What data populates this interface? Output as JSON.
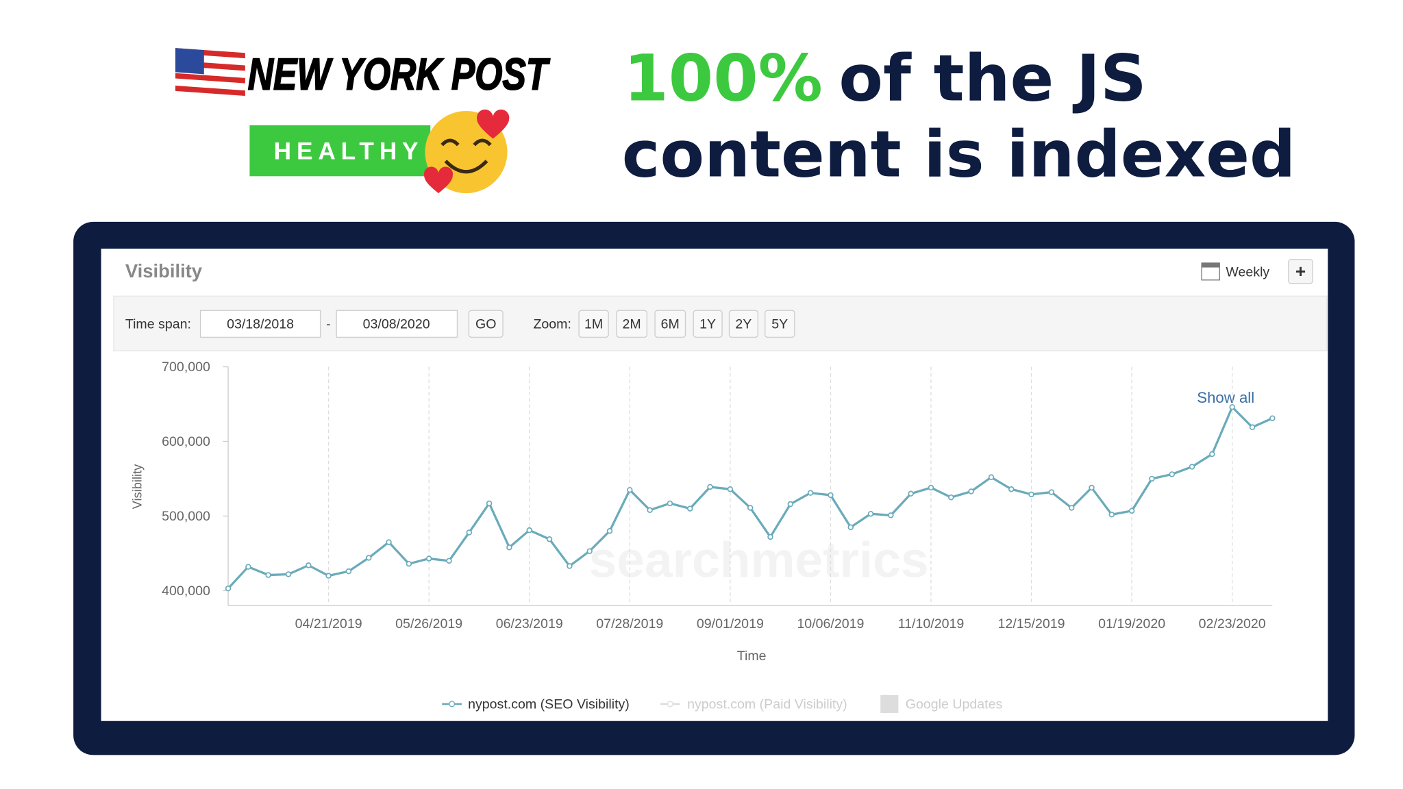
{
  "logo": {
    "text": "NEW YORK POST",
    "badge": "HEALTHY"
  },
  "headline": {
    "highlight": "100%",
    "line1": "of the JS",
    "line2": "content is indexed"
  },
  "widget": {
    "title": "Visibility",
    "interval": "Weekly",
    "add": "+",
    "time_span_label": "Time span:",
    "start": "03/18/2018",
    "separator": "-",
    "end": "03/08/2020",
    "go": "GO",
    "zoom_label": "Zoom:",
    "zoom": [
      "1M",
      "2M",
      "6M",
      "1Y",
      "2Y",
      "5Y"
    ],
    "show_all": "Show all",
    "watermark": "searchmetrics",
    "inactive_legend": [
      "nypost.com (Paid Visibility)",
      "Google Updates"
    ]
  },
  "chart_data": {
    "type": "line",
    "x_label": "Time",
    "y_label": "Visibility",
    "categories": [
      null,
      null,
      null,
      null,
      null,
      "04/21/2019",
      null,
      null,
      null,
      null,
      "05/26/2019",
      null,
      null,
      null,
      null,
      "06/23/2019",
      null,
      null,
      null,
      null,
      "07/28/2019",
      null,
      null,
      null,
      null,
      "09/01/2019",
      null,
      null,
      null,
      null,
      "10/06/2019",
      null,
      null,
      null,
      null,
      "11/10/2019",
      null,
      null,
      null,
      null,
      "12/15/2019",
      null,
      null,
      null,
      null,
      "01/19/2020",
      null,
      null,
      null,
      null,
      "02/23/2020",
      null,
      null
    ],
    "series": [
      {
        "name": "nypost.com (SEO Visibility)",
        "color": "#6aabba",
        "values": [
          403000,
          432000,
          421000,
          422000,
          434000,
          420000,
          426000,
          444000,
          465000,
          436000,
          443000,
          440000,
          478000,
          517000,
          458000,
          481000,
          469000,
          433000,
          453000,
          480000,
          535000,
          508000,
          517000,
          510000,
          539000,
          536000,
          511000,
          472000,
          516000,
          531000,
          528000,
          485000,
          503000,
          501000,
          530000,
          538000,
          525000,
          533000,
          552000,
          536000,
          529000,
          532000,
          511000,
          538000,
          502000,
          507000,
          550000,
          556000,
          566000,
          583000,
          646000,
          619000,
          631000
        ]
      }
    ],
    "ylim": [
      380000,
      700000
    ],
    "yticks": [
      {
        "value": 400000,
        "label": "400,000"
      },
      {
        "value": 500000,
        "label": "500,000"
      },
      {
        "value": 600000,
        "label": "600,000"
      },
      {
        "value": 700000,
        "label": "700,000"
      }
    ],
    "grid": "x"
  }
}
